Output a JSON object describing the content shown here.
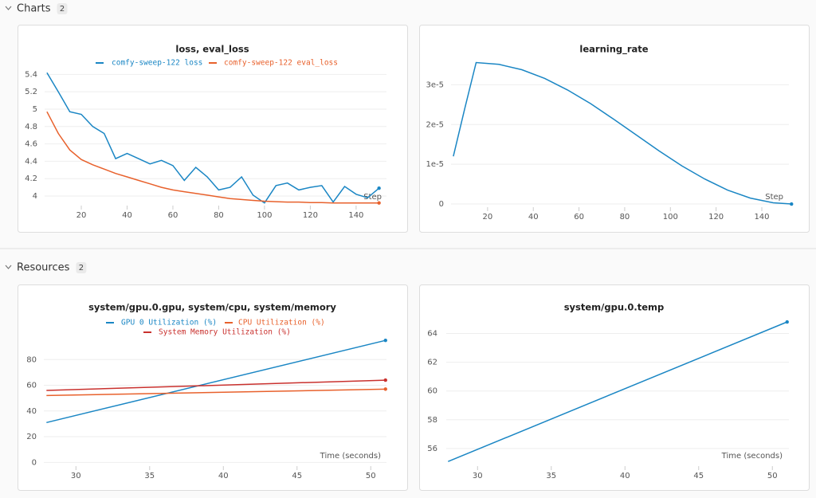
{
  "sections": [
    {
      "title": "Charts",
      "count": 2,
      "charts": [
        {
          "type": "line",
          "title": "loss, eval_loss",
          "xlabel": "Step",
          "x": [
            5,
            10,
            15,
            20,
            25,
            30,
            35,
            40,
            45,
            50,
            55,
            60,
            65,
            70,
            75,
            80,
            85,
            90,
            95,
            100,
            105,
            110,
            115,
            120,
            125,
            130,
            135,
            140,
            145,
            150
          ],
          "xlim": [
            4,
            155
          ],
          "xticks": [
            20,
            40,
            60,
            80,
            100,
            120,
            140
          ],
          "ylim": [
            3.89,
            5.55
          ],
          "yticks": [
            4,
            4.2,
            4.4,
            4.6,
            4.8,
            5,
            5.2,
            5.4
          ],
          "grid": true,
          "series": [
            {
              "name": "comfy-sweep-122 loss",
              "color": "#1a86c4",
              "values": [
                5.42,
                5.2,
                4.97,
                4.94,
                4.8,
                4.72,
                4.43,
                4.49,
                4.43,
                4.37,
                4.41,
                4.35,
                4.18,
                4.33,
                4.22,
                4.07,
                4.1,
                4.22,
                4.01,
                3.92,
                4.12,
                4.15,
                4.07,
                4.1,
                4.12,
                3.93,
                4.11,
                4.02,
                3.98,
                4.09
              ]
            },
            {
              "name": "comfy-sweep-122 eval_loss",
              "color": "#e8612c",
              "values": [
                4.97,
                4.72,
                4.53,
                4.42,
                4.36,
                4.31,
                4.26,
                4.22,
                4.18,
                4.14,
                4.1,
                4.07,
                4.05,
                4.03,
                4.01,
                3.99,
                3.97,
                3.96,
                3.95,
                3.94,
                3.935,
                3.93,
                3.93,
                3.925,
                3.925,
                3.92,
                3.92,
                3.92,
                3.92,
                3.92
              ]
            }
          ]
        },
        {
          "type": "line",
          "title": "learning_rate",
          "xlabel": "Step",
          "x": [
            5,
            10,
            15,
            25,
            35,
            45,
            55,
            65,
            75,
            85,
            95,
            105,
            115,
            125,
            135,
            145,
            153
          ],
          "xlim": [
            4,
            155
          ],
          "xticks": [
            20,
            40,
            60,
            80,
            100,
            120,
            140
          ],
          "ylim": [
            -1.2e-06,
            3.65e-05
          ],
          "yticks": [
            0,
            {
              "value": 1e-05,
              "label": "1e-5"
            },
            {
              "value": 2e-05,
              "label": "2e-5"
            },
            {
              "value": 3e-05,
              "label": "3e-5"
            }
          ],
          "grid": true,
          "series": [
            {
              "color": "#1a86c4",
              "values": [
                1.2e-05,
                2.4e-05,
                3.56e-05,
                3.514e-05,
                3.38e-05,
                3.16e-05,
                2.87e-05,
                2.53e-05,
                2.14e-05,
                1.74e-05,
                1.34e-05,
                9.6e-06,
                6.3e-06,
                3.5e-06,
                1.48e-06,
                3e-07,
                0
              ]
            }
          ]
        }
      ]
    },
    {
      "title": "Resources",
      "count": 2,
      "charts": [
        {
          "type": "line",
          "title": "system/gpu.0.gpu, system/cpu, system/memory",
          "xlabel": "Time (seconds)",
          "x": [
            28,
            51
          ],
          "xlim": [
            26.2,
            51.5
          ],
          "xticks": [
            30,
            35,
            40,
            45,
            50
          ],
          "ylim": [
            -6,
            100
          ],
          "yticks": [
            0,
            20,
            40,
            60,
            80
          ],
          "grid": true,
          "series": [
            {
              "name": "GPU 0 Utilization (%)",
              "color": "#1a86c4",
              "values": [
                31,
                94.9
              ]
            },
            {
              "name": "CPU Utilization (%)",
              "color": "#e8612c",
              "values": [
                52,
                57
              ]
            },
            {
              "name": "System Memory Utilization (%)",
              "color": "#c9312e",
              "values": [
                56,
                64
              ]
            }
          ]
        },
        {
          "type": "line",
          "title": "system/gpu.0.temp",
          "xlabel": "Time (seconds)",
          "x": [
            28,
            51
          ],
          "xlim": [
            26.2,
            51.5
          ],
          "xticks": [
            30,
            35,
            40,
            45,
            50
          ],
          "ylim": [
            54.5,
            65.3
          ],
          "yticks": [
            56,
            58,
            60,
            62,
            64
          ],
          "grid": true,
          "series": [
            {
              "color": "#1a86c4",
              "values": [
                55.1,
                64.8
              ]
            }
          ]
        }
      ]
    }
  ]
}
